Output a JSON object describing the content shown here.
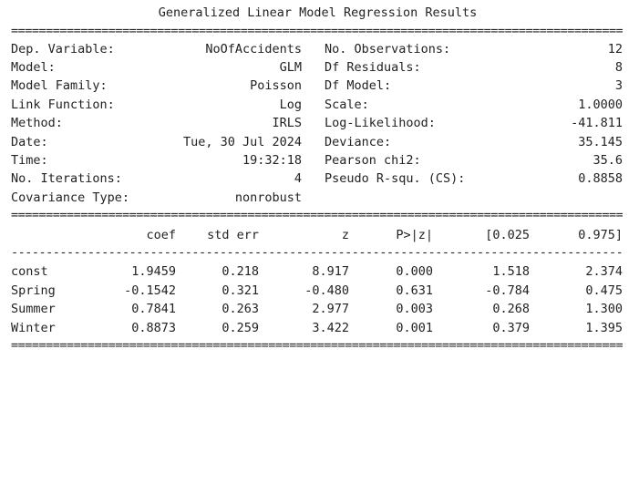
{
  "title": "Generalized Linear Model Regression Results",
  "rule_double": "==========================================================================================================================================",
  "rule_single": "------------------------------------------------------------------------------------------------------------------------------------------",
  "info_left": [
    {
      "label": "Dep. Variable:",
      "value": "NoOfAccidents"
    },
    {
      "label": "Model:",
      "value": "GLM"
    },
    {
      "label": "Model Family:",
      "value": "Poisson"
    },
    {
      "label": "Link Function:",
      "value": "Log"
    },
    {
      "label": "Method:",
      "value": "IRLS"
    },
    {
      "label": "Date:",
      "value": "Tue, 30 Jul 2024"
    },
    {
      "label": "Time:",
      "value": "19:32:18"
    },
    {
      "label": "No. Iterations:",
      "value": "4"
    },
    {
      "label": "Covariance Type:",
      "value": "nonrobust"
    }
  ],
  "info_right": [
    {
      "label": "No. Observations:",
      "value": "12"
    },
    {
      "label": "Df Residuals:",
      "value": "8"
    },
    {
      "label": "Df Model:",
      "value": "3"
    },
    {
      "label": "Scale:",
      "value": "1.0000"
    },
    {
      "label": "Log-Likelihood:",
      "value": "-41.811"
    },
    {
      "label": "Deviance:",
      "value": "35.145"
    },
    {
      "label": "Pearson chi2:",
      "value": "35.6"
    },
    {
      "label": "Pseudo R-squ. (CS):",
      "value": "0.8858"
    }
  ],
  "coef_table": {
    "headers": [
      "coef",
      "std err",
      "z",
      "P>|z|",
      "[0.025",
      "0.975]"
    ],
    "rows": [
      {
        "name": "const",
        "values": [
          "1.9459",
          "0.218",
          "8.917",
          "0.000",
          "1.518",
          "2.374"
        ]
      },
      {
        "name": "Spring",
        "values": [
          "-0.1542",
          "0.321",
          "-0.480",
          "0.631",
          "-0.784",
          "0.475"
        ]
      },
      {
        "name": "Summer",
        "values": [
          "0.7841",
          "0.263",
          "2.977",
          "0.003",
          "0.268",
          "1.300"
        ]
      },
      {
        "name": "Winter",
        "values": [
          "0.8873",
          "0.259",
          "3.422",
          "0.001",
          "0.379",
          "1.395"
        ]
      }
    ]
  }
}
